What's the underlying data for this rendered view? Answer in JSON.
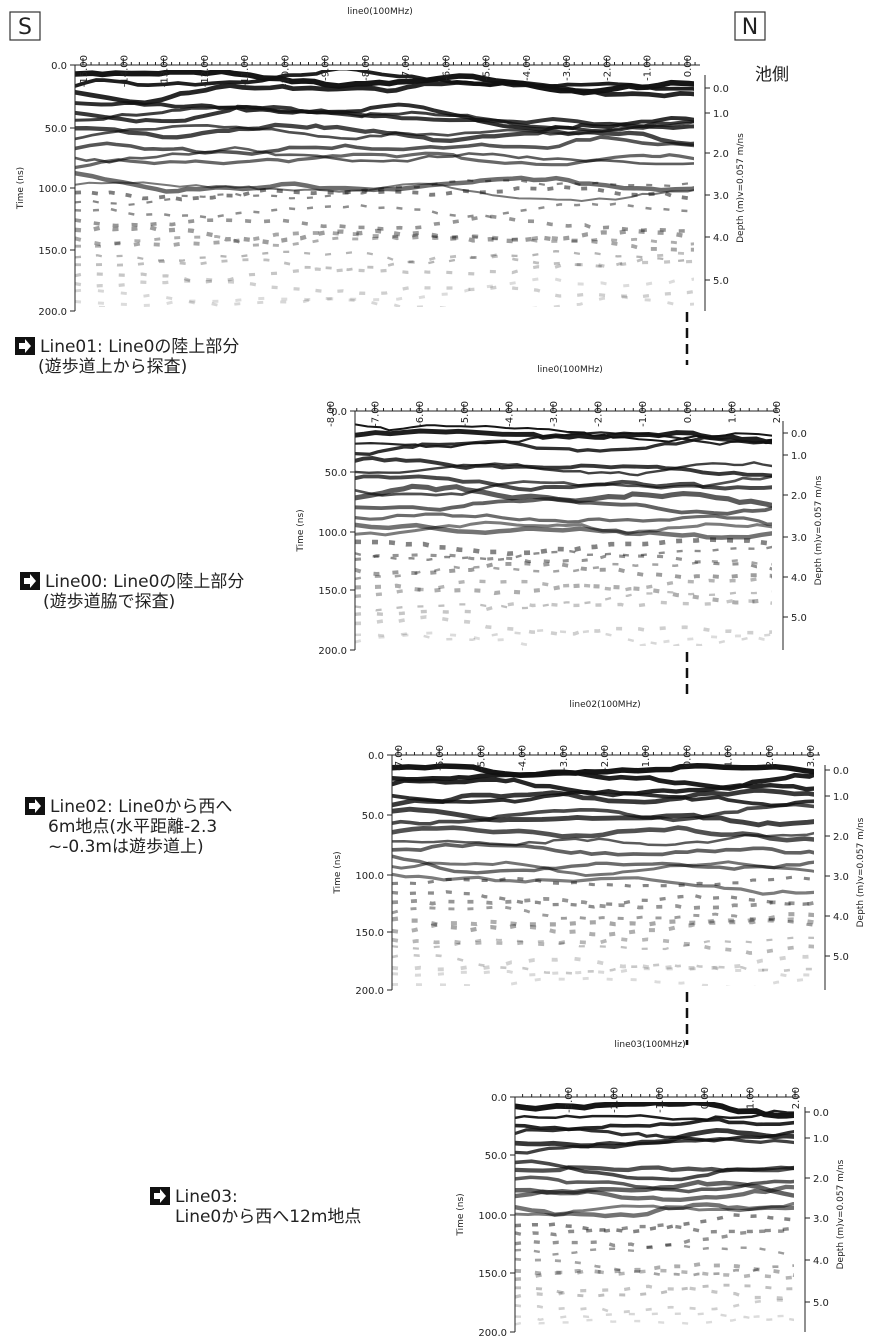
{
  "corner_labels": {
    "south": "S",
    "north": "N",
    "pond_side": "池側"
  },
  "panels": [
    {
      "title": "line0(100MHz)",
      "x_ticks": [
        "-15.00",
        "-14.00",
        "-13.00",
        "-12.00",
        "-11.00",
        "-10.00",
        "-9.00",
        "-8.00",
        "-7.00",
        "-6.00",
        "-5.00",
        "-4.00",
        "-3.00",
        "-2.00",
        "-1.00",
        "0.00"
      ],
      "time_ticks": [
        "0.0",
        "50.0",
        "100.0",
        "150.0",
        "200.0"
      ],
      "depth_ticks": [
        "0.0",
        "1.0",
        "2.0",
        "3.0",
        "4.0",
        "5.0"
      ],
      "time_label": "Time (ns)",
      "depth_label": "Depth (m)v=0.057 m/ns"
    },
    {
      "title": "line0(100MHz)",
      "x_ticks": [
        "-8.00",
        "-7.00",
        "-6.00",
        "-5.00",
        "-4.00",
        "-3.00",
        "-2.00",
        "-1.00",
        "0.00",
        "1.00",
        "2.00"
      ],
      "time_ticks": [
        "0.0",
        "50.0",
        "100.0",
        "150.0",
        "200.0"
      ],
      "depth_ticks": [
        "0.0",
        "1.0",
        "2.0",
        "3.0",
        "4.0",
        "5.0"
      ],
      "time_label": "Time (ns)",
      "depth_label": "Depth (m)v=0.057 m/ns"
    },
    {
      "title": "line02(100MHz)",
      "x_ticks": [
        "-7.00",
        "-6.00",
        "-5.00",
        "-4.00",
        "-3.00",
        "-2.00",
        "-1.00",
        "0.00",
        "1.00",
        "2.00",
        "3.00"
      ],
      "time_ticks": [
        "0.0",
        "50.0",
        "100.0",
        "150.0",
        "200.0"
      ],
      "depth_ticks": [
        "0.0",
        "1.0",
        "2.0",
        "3.0",
        "4.0",
        "5.0"
      ],
      "time_label": "Time (ns)",
      "depth_label": "Depth (m)v=0.057 m/ns"
    },
    {
      "title": "line03(100MHz)",
      "x_ticks": [
        "-3.00",
        "-2.00",
        "-1.00",
        "0.00",
        "1.00",
        "2.00"
      ],
      "time_ticks": [
        "0.0",
        "50.0",
        "100.0",
        "150.0",
        "200.0"
      ],
      "depth_ticks": [
        "0.0",
        "1.0",
        "2.0",
        "3.0",
        "4.0",
        "5.0"
      ],
      "time_label": "Time (ns)",
      "depth_label": "Depth (m)v=0.057 m/ns"
    }
  ],
  "captions": [
    [
      "Line01: Line0の陸上部分",
      "(遊歩道上から探査)"
    ],
    [
      "Line00: Line0の陸上部分",
      "(遊歩道脇で探査)"
    ],
    [
      "Line02: Line0から西へ",
      "6m地点(水平距離-2.3",
      "~-0.3mは遊歩道上)"
    ],
    [
      "Line03:",
      "Line0から西へ12m地点"
    ]
  ]
}
